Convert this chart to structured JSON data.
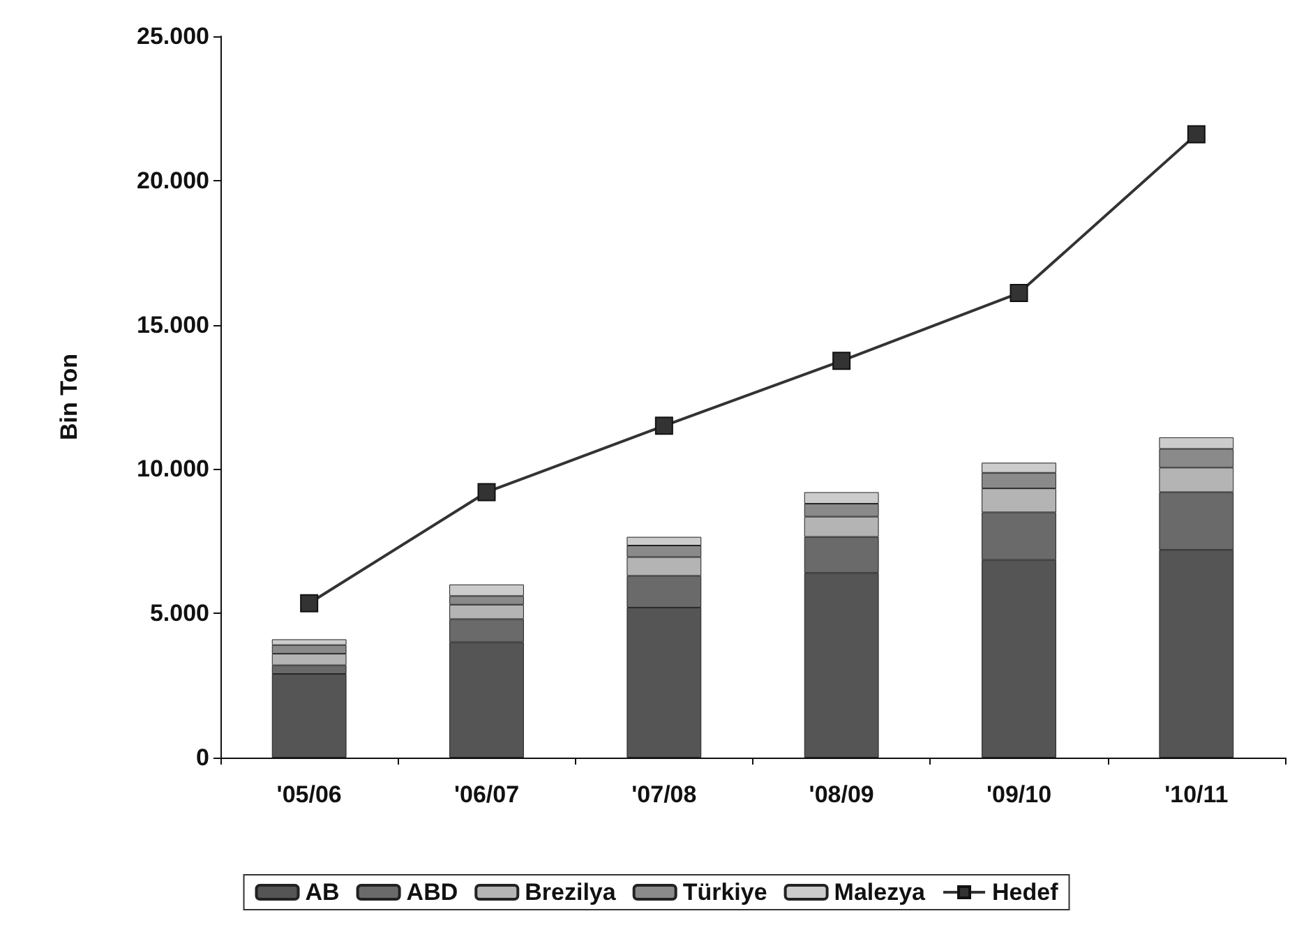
{
  "chart_data": {
    "type": "bar",
    "stacked": true,
    "ylabel": "Bin Ton",
    "categories": [
      "'05/06",
      "'06/07",
      "'07/08",
      "'08/09",
      "'09/10",
      "'10/11"
    ],
    "series": [
      {
        "name": "AB",
        "color": "#555555",
        "values": [
          2900,
          4000,
          5200,
          6400,
          6850,
          7200
        ]
      },
      {
        "name": "ABD",
        "color": "#6a6a6a",
        "values": [
          300,
          800,
          1100,
          1250,
          1650,
          2000
        ]
      },
      {
        "name": "Brezilya",
        "color": "#b4b4b4",
        "values": [
          400,
          500,
          650,
          700,
          830,
          850
        ]
      },
      {
        "name": "Türkiye",
        "color": "#8a8a8a",
        "values": [
          300,
          300,
          400,
          450,
          540,
          650
        ]
      },
      {
        "name": "Malezya",
        "color": "#cccccc",
        "values": [
          200,
          400,
          300,
          400,
          350,
          400
        ]
      },
      {
        "name": "Hedef",
        "type": "line",
        "color": "#333333",
        "marker": "square",
        "values": [
          5350,
          9200,
          11500,
          13750,
          16100,
          21600
        ]
      }
    ],
    "ylim": [
      0,
      25000
    ],
    "yticks": [
      {
        "value": 0,
        "label": "0"
      },
      {
        "value": 5000,
        "label": "5.000"
      },
      {
        "value": 10000,
        "label": "10.000"
      },
      {
        "value": 15000,
        "label": "15.000"
      },
      {
        "value": 20000,
        "label": "20.000"
      },
      {
        "value": 25000,
        "label": "25.000"
      }
    ],
    "grid": false,
    "legend": "bottom"
  }
}
